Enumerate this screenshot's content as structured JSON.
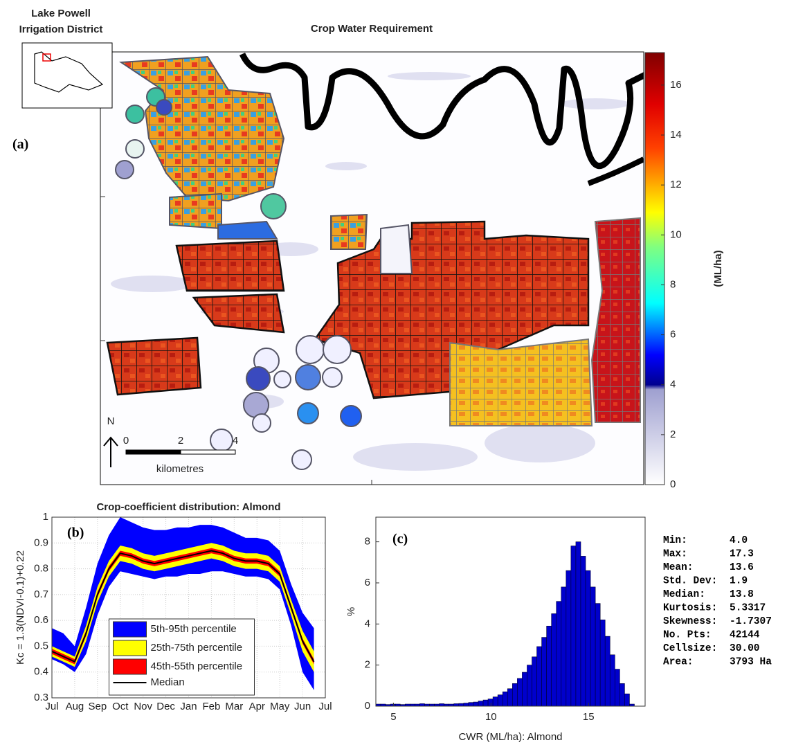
{
  "figure": {
    "inset_title": [
      "Lake Powell",
      "Irrigation District"
    ],
    "title": "Crop Water Requirement",
    "panel_label": "(a)",
    "north": "N",
    "scale": {
      "ticks": [
        0,
        2,
        4
      ],
      "label": "kilometres"
    },
    "colorbar": {
      "label": "(ML/ha)",
      "lim": [
        0,
        17.3
      ],
      "ticks": [
        0,
        2,
        4,
        6,
        8,
        10,
        12,
        14,
        16
      ]
    }
  },
  "chart_data": [
    {
      "type": "band",
      "title": "Crop-coefficient distribution: Almond",
      "panel_label": "(b)",
      "y_label": "Kc = 1.3(NDVI-0.1)+0.22",
      "x": [
        0,
        0.5,
        1,
        1.5,
        2,
        2.5,
        3,
        3.5,
        4,
        4.5,
        5,
        5.5,
        6,
        6.5,
        7,
        7.5,
        8,
        8.5,
        9,
        9.5,
        10,
        10.5,
        11,
        11.5
      ],
      "xlim": [
        0,
        12
      ],
      "xticks": [
        {
          "value": 0,
          "label": "Jul"
        },
        {
          "value": 1,
          "label": "Aug"
        },
        {
          "value": 2,
          "label": "Sep"
        },
        {
          "value": 3,
          "label": "Oct"
        },
        {
          "value": 4,
          "label": "Nov"
        },
        {
          "value": 5,
          "label": "Dec"
        },
        {
          "value": 6,
          "label": "Jan"
        },
        {
          "value": 7,
          "label": "Feb"
        },
        {
          "value": 8,
          "label": "Mar"
        },
        {
          "value": 9,
          "label": "Apr"
        },
        {
          "value": 10,
          "label": "May"
        },
        {
          "value": 11,
          "label": "Jun"
        },
        {
          "value": 12,
          "label": "Jul"
        }
      ],
      "ylim": [
        0.3,
        1
      ],
      "yticks": [
        0.3,
        0.4,
        0.5,
        0.6,
        0.7,
        0.8,
        0.9,
        1
      ],
      "grid": true,
      "legend": "lower center",
      "series": [
        {
          "name": "5th-95th percentile",
          "color": "#0000ff",
          "lower": [
            0.45,
            0.43,
            0.4,
            0.47,
            0.62,
            0.73,
            0.79,
            0.78,
            0.77,
            0.76,
            0.77,
            0.77,
            0.78,
            0.78,
            0.79,
            0.79,
            0.78,
            0.77,
            0.77,
            0.76,
            0.72,
            0.58,
            0.4,
            0.33
          ],
          "upper": [
            0.57,
            0.55,
            0.5,
            0.65,
            0.82,
            0.93,
            1.0,
            0.98,
            0.96,
            0.95,
            0.95,
            0.96,
            0.96,
            0.97,
            0.97,
            0.96,
            0.94,
            0.92,
            0.92,
            0.91,
            0.87,
            0.74,
            0.63,
            0.57
          ]
        },
        {
          "name": "25th-75th percentile",
          "color": "#ffff00",
          "lower": [
            0.46,
            0.44,
            0.42,
            0.52,
            0.67,
            0.77,
            0.83,
            0.82,
            0.8,
            0.79,
            0.8,
            0.81,
            0.82,
            0.83,
            0.84,
            0.83,
            0.81,
            0.8,
            0.8,
            0.79,
            0.75,
            0.62,
            0.48,
            0.4
          ],
          "upper": [
            0.5,
            0.48,
            0.46,
            0.58,
            0.73,
            0.83,
            0.89,
            0.88,
            0.86,
            0.85,
            0.86,
            0.87,
            0.88,
            0.89,
            0.9,
            0.89,
            0.87,
            0.86,
            0.86,
            0.85,
            0.81,
            0.68,
            0.56,
            0.48
          ]
        },
        {
          "name": "45th-55th percentile",
          "color": "#ff0000",
          "lower": [
            0.47,
            0.45,
            0.43,
            0.54,
            0.69,
            0.79,
            0.85,
            0.84,
            0.82,
            0.81,
            0.82,
            0.83,
            0.84,
            0.85,
            0.86,
            0.85,
            0.83,
            0.82,
            0.82,
            0.81,
            0.77,
            0.64,
            0.51,
            0.43
          ],
          "upper": [
            0.49,
            0.47,
            0.45,
            0.56,
            0.71,
            0.81,
            0.87,
            0.86,
            0.84,
            0.83,
            0.84,
            0.85,
            0.86,
            0.87,
            0.88,
            0.87,
            0.85,
            0.84,
            0.84,
            0.83,
            0.79,
            0.66,
            0.53,
            0.45
          ]
        },
        {
          "name": "Median",
          "color": "#000000",
          "values": [
            0.48,
            0.46,
            0.44,
            0.55,
            0.7,
            0.8,
            0.86,
            0.85,
            0.83,
            0.82,
            0.83,
            0.84,
            0.85,
            0.86,
            0.87,
            0.86,
            0.84,
            0.83,
            0.83,
            0.82,
            0.78,
            0.65,
            0.52,
            0.44
          ]
        }
      ]
    },
    {
      "type": "histogram",
      "panel_label": "(c)",
      "x_label": "CWR (ML/ha): Almond",
      "y_label": "%",
      "color": "#0000cc",
      "bins": [
        4.1,
        4.35,
        4.6,
        4.85,
        5.1,
        5.35,
        5.6,
        5.85,
        6.1,
        6.35,
        6.6,
        6.85,
        7.1,
        7.35,
        7.6,
        7.85,
        8.1,
        8.35,
        8.6,
        8.85,
        9.1,
        9.35,
        9.6,
        9.85,
        10.1,
        10.35,
        10.6,
        10.85,
        11.1,
        11.35,
        11.6,
        11.85,
        12.1,
        12.35,
        12.6,
        12.85,
        13.1,
        13.35,
        13.6,
        13.85,
        14.1,
        14.35,
        14.6,
        14.85,
        15.1,
        15.35,
        15.6,
        15.85,
        16.1,
        16.35,
        16.6,
        16.85,
        17.1,
        17.35
      ],
      "counts": [
        0.1,
        0.1,
        0.08,
        0.1,
        0.1,
        0.08,
        0.1,
        0.1,
        0.1,
        0.12,
        0.1,
        0.1,
        0.1,
        0.12,
        0.1,
        0.1,
        0.12,
        0.13,
        0.15,
        0.18,
        0.2,
        0.25,
        0.3,
        0.35,
        0.45,
        0.55,
        0.7,
        0.85,
        1.1,
        1.35,
        1.65,
        2.0,
        2.4,
        2.9,
        3.35,
        3.9,
        4.5,
        5.1,
        5.8,
        6.6,
        7.8,
        8.0,
        7.3,
        6.6,
        5.8,
        5.0,
        4.2,
        3.4,
        2.5,
        1.8,
        1.1,
        0.6,
        0.1
      ],
      "xlim": [
        4.1,
        17.9
      ],
      "xticks": [
        5,
        10,
        15
      ],
      "ylim": [
        0,
        9.2
      ],
      "yticks": [
        0,
        2,
        4,
        6,
        8
      ]
    }
  ],
  "stats": {
    "rows": [
      [
        "Min:",
        "4.0"
      ],
      [
        "Max:",
        "17.3"
      ],
      [
        "Mean:",
        "13.6"
      ],
      [
        "Std. Dev:",
        "1.9"
      ],
      [
        "Median:",
        "13.8"
      ],
      [
        "Kurtosis:",
        "5.3317"
      ],
      [
        "Skewness:",
        "-1.7307"
      ],
      [
        "No. Pts:",
        "42144"
      ],
      [
        "Cellsize:",
        "30.00"
      ],
      [
        "Area:",
        "3793 Ha"
      ]
    ]
  }
}
